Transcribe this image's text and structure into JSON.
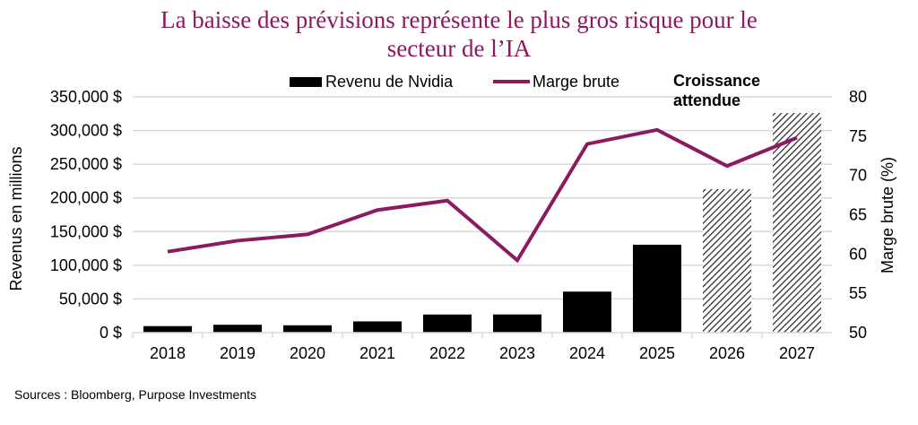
{
  "chart_data": {
    "type": "bar+line",
    "title_line1": "La baisse des prévisions représente le plus gros risque pour le",
    "title_line2": "secteur de l’IA",
    "categories": [
      "2018",
      "2019",
      "2020",
      "2021",
      "2022",
      "2023",
      "2024",
      "2025",
      "2026",
      "2027"
    ],
    "series": [
      {
        "name": "Revenu de Nvidia",
        "type": "bar",
        "axis": "left",
        "color": "#000000",
        "values": [
          9700,
          11700,
          10900,
          16700,
          26900,
          27000,
          60900,
          130500,
          213000,
          326000
        ],
        "hatched_from": "2026"
      },
      {
        "name": "Marge brute",
        "type": "line",
        "axis": "right",
        "color": "#8b1a5f",
        "values": [
          60.3,
          61.7,
          62.5,
          65.6,
          66.8,
          59.2,
          74.0,
          75.8,
          71.2,
          74.8
        ]
      }
    ],
    "annotation": "Croissance attendue",
    "ylabel_left": "Revenus en millions",
    "ylabel_right": "Marge brute (%)",
    "ylim_left": [
      0,
      350000
    ],
    "ylim_right": [
      50,
      80
    ],
    "yticks_left": [
      "0 $",
      "50,000 $",
      "100,000 $",
      "150,000 $",
      "200,000 $",
      "250,000 $",
      "300,000 $",
      "350,000 $"
    ],
    "yticks_right": [
      "50",
      "55",
      "60",
      "65",
      "70",
      "75",
      "80"
    ],
    "grid": true,
    "legend_position": "top"
  },
  "source": "Sources : Bloomberg, Purpose Investments"
}
